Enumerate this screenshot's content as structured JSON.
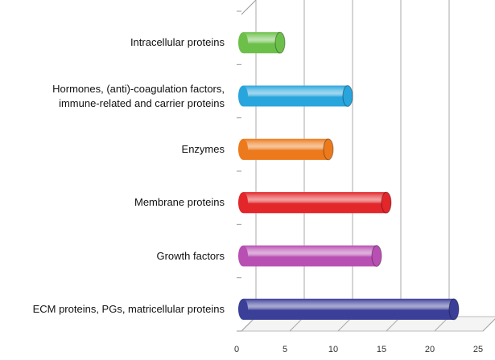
{
  "chart_data": {
    "type": "bar",
    "orientation": "horizontal",
    "style": "3d-cylinder",
    "title": "",
    "xlabel": "",
    "ylabel": "",
    "xlim": [
      0,
      25
    ],
    "grid": true,
    "xticks": [
      "0",
      "5",
      "10",
      "15",
      "20",
      "25"
    ],
    "categories": [
      "ECM proteins, PGs, matricellular proteins",
      "Growth factors",
      "Membrane proteins",
      "Enzymes",
      "Hormones, (anti)-coagulation factors,\nimmune-related and carrier proteins",
      "Intracellular proteins"
    ],
    "values": [
      22,
      14,
      15,
      9,
      11,
      4
    ],
    "colors": [
      "#3b3f98",
      "#b84fb2",
      "#e2262a",
      "#ec7a1c",
      "#28a5dd",
      "#6cc04a"
    ]
  }
}
